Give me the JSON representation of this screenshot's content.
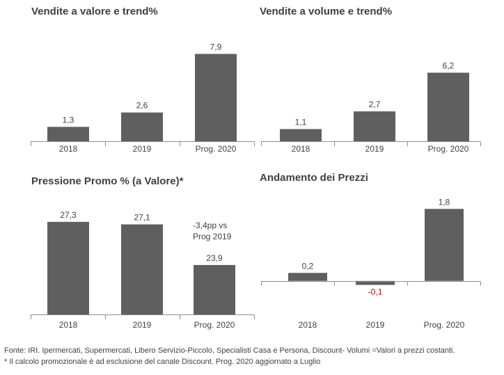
{
  "footer": {
    "line1": "Fonte: IRI. Ipermercati, Supermercati, Libero Servizio-Piccolo, Specialisti Casa e Persona, Discount-  Volumi =Valori a prezzi costanti.",
    "line2": "* Il calcolo promozionale è ad esclusione del canale Discount. Prog. 2020 aggiornato a Luglio"
  },
  "colors": {
    "bar": "#5f5f5f",
    "negative_label": "#c00000",
    "axis": "#8c8c8c"
  },
  "chart_data": [
    {
      "type": "bar",
      "title": "Vendite a valore e trend%",
      "categories": [
        "2018",
        "2019",
        "Prog. 2020"
      ],
      "values": [
        1.3,
        2.6,
        7.9
      ],
      "labels": [
        "1,3",
        "2,6",
        "7,9"
      ],
      "ylim": [
        0,
        9.0
      ],
      "xlabel": "",
      "ylabel": "",
      "grid": false
    },
    {
      "type": "bar",
      "title": "Vendite a volume e trend%",
      "categories": [
        "2018",
        "2019",
        "Prog. 2020"
      ],
      "values": [
        1.1,
        2.7,
        6.2
      ],
      "labels": [
        "1,1",
        "2,7",
        "6,2"
      ],
      "ylim": [
        0,
        9.0
      ],
      "xlabel": "",
      "ylabel": "",
      "grid": false
    },
    {
      "type": "bar",
      "title": "Pressione Promo % (a Valore)*",
      "categories": [
        "2018",
        "2019",
        "Prog. 2020"
      ],
      "values": [
        27.3,
        27.1,
        23.9
      ],
      "labels": [
        "27,3",
        "27,1",
        "23,9"
      ],
      "ylim": [
        20.0,
        28.5
      ],
      "annotation": "-3,4pp vs\nProg 2019",
      "xlabel": "",
      "ylabel": "",
      "grid": false
    },
    {
      "type": "bar",
      "title": "Andamento dei Prezzi",
      "categories": [
        "2018",
        "2019",
        "Prog. 2020"
      ],
      "values": [
        0.2,
        -0.1,
        1.8
      ],
      "labels": [
        "0,2",
        "-0,1",
        "1,8"
      ],
      "ylim": [
        -0.3,
        2.1
      ],
      "xlabel": "",
      "ylabel": "",
      "grid": false
    }
  ]
}
